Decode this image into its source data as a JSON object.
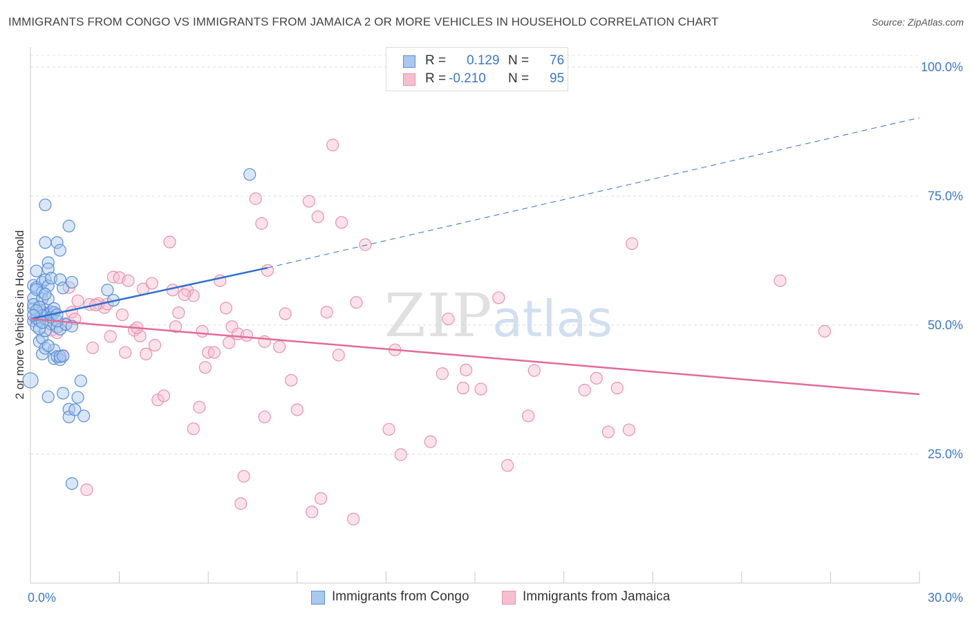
{
  "header": {
    "title": "IMMIGRANTS FROM CONGO VS IMMIGRANTS FROM JAMAICA 2 OR MORE VEHICLES IN HOUSEHOLD CORRELATION CHART",
    "source": "Source: ZipAtlas.com"
  },
  "legend_top": {
    "congo": {
      "r_label": "R =",
      "r_value": "0.129",
      "n_label": "N =",
      "n_value": "76"
    },
    "jamaica": {
      "r_label": "R =",
      "r_value": "-0.210",
      "n_label": "N =",
      "n_value": "95"
    }
  },
  "watermark": {
    "zip": "ZIP",
    "atlas": "atlas"
  },
  "colors": {
    "congo_fill": "#a9c8ee",
    "congo_stroke": "#5a8fd6",
    "congo_line": "#2f6fcc",
    "jamaica_fill": "#f6bfd0",
    "jamaica_stroke": "#e990ad",
    "jamaica_line": "#e26a97",
    "tick_label": "#3b78c8"
  },
  "chart_data": {
    "type": "scatter",
    "title": "IMMIGRANTS FROM CONGO VS IMMIGRANTS FROM JAMAICA 2 OR MORE VEHICLES IN HOUSEHOLD CORRELATION CHART",
    "xlabel": "",
    "ylabel": "2 or more Vehicles in Household",
    "xlim": [
      0,
      30
    ],
    "ylim": [
      0,
      100
    ],
    "x_tick_labels": [
      "0.0%",
      "30.0%"
    ],
    "y_ticks": [
      25,
      50,
      75,
      100
    ],
    "y_tick_labels": [
      "25.0%",
      "50.0%",
      "75.0%",
      "100.0%"
    ],
    "grid": true,
    "legend_position": "bottom",
    "series": [
      {
        "name": "Immigrants from Congo",
        "r": 0.129,
        "n": 76,
        "trend": {
          "x0": 0,
          "y0": 51.2,
          "x1": 8.0,
          "y1": 61.1,
          "dash_to_x": 30,
          "dash_to_y": 90.2
        },
        "points": [
          [
            0.0,
            39.3
          ],
          [
            0.1,
            50.8
          ],
          [
            0.1,
            53.2
          ],
          [
            0.1,
            55.2
          ],
          [
            0.1,
            57.7
          ],
          [
            0.2,
            57.3
          ],
          [
            0.2,
            60.5
          ],
          [
            0.2,
            52.3
          ],
          [
            0.2,
            51.2
          ],
          [
            0.2,
            49.8
          ],
          [
            0.3,
            46.8
          ],
          [
            0.3,
            50.9
          ],
          [
            0.4,
            56.4
          ],
          [
            0.4,
            58.3
          ],
          [
            0.4,
            55.1
          ],
          [
            0.4,
            44.4
          ],
          [
            0.4,
            47.5
          ],
          [
            0.4,
            52.6
          ],
          [
            0.5,
            66.0
          ],
          [
            0.5,
            73.3
          ],
          [
            0.5,
            58.8
          ],
          [
            0.5,
            52.0
          ],
          [
            0.5,
            45.5
          ],
          [
            0.6,
            62.1
          ],
          [
            0.6,
            60.9
          ],
          [
            0.6,
            57.6
          ],
          [
            0.6,
            55.1
          ],
          [
            0.6,
            36.1
          ],
          [
            0.6,
            52.1
          ],
          [
            0.6,
            51.0
          ],
          [
            0.7,
            59.1
          ],
          [
            0.7,
            52.6
          ],
          [
            0.7,
            50.2
          ],
          [
            0.8,
            52.4
          ],
          [
            0.8,
            45.2
          ],
          [
            0.8,
            43.5
          ],
          [
            0.9,
            66.0
          ],
          [
            0.9,
            43.9
          ],
          [
            0.9,
            49.6
          ],
          [
            1.0,
            64.5
          ],
          [
            1.0,
            58.8
          ],
          [
            1.0,
            49.2
          ],
          [
            1.0,
            43.3
          ],
          [
            1.0,
            43.9
          ],
          [
            1.1,
            57.2
          ],
          [
            1.1,
            36.8
          ],
          [
            1.2,
            50.1
          ],
          [
            1.3,
            69.2
          ],
          [
            1.3,
            33.7
          ],
          [
            1.3,
            32.2
          ],
          [
            1.4,
            58.3
          ],
          [
            1.4,
            49.8
          ],
          [
            1.4,
            19.3
          ],
          [
            1.5,
            33.6
          ],
          [
            1.6,
            36.0
          ],
          [
            1.7,
            39.2
          ],
          [
            1.8,
            32.4
          ],
          [
            2.6,
            56.8
          ],
          [
            2.8,
            54.8
          ],
          [
            7.4,
            79.2
          ],
          [
            0.1,
            54.0
          ],
          [
            0.2,
            56.9
          ],
          [
            0.3,
            53.5
          ],
          [
            0.4,
            51.8
          ],
          [
            0.5,
            48.9
          ],
          [
            0.7,
            51.5
          ],
          [
            0.8,
            53.2
          ],
          [
            0.9,
            50.8
          ],
          [
            1.1,
            44.0
          ],
          [
            0.3,
            49.3
          ],
          [
            0.5,
            56.0
          ],
          [
            0.2,
            52.8
          ],
          [
            0.6,
            46.0
          ],
          [
            0.4,
            50.5
          ],
          [
            0.9,
            52.0
          ],
          [
            0.1,
            51.9
          ]
        ]
      },
      {
        "name": "Immigrants from Jamaica",
        "r": -0.21,
        "n": 95,
        "trend": {
          "x0": 0,
          "y0": 51.2,
          "x1": 30,
          "y1": 36.6
        },
        "points": [
          [
            0.4,
            53.5
          ],
          [
            0.5,
            52.3
          ],
          [
            0.7,
            49.0
          ],
          [
            0.8,
            52.5
          ],
          [
            0.9,
            48.5
          ],
          [
            1.1,
            44.1
          ],
          [
            1.2,
            50.3
          ],
          [
            1.3,
            57.3
          ],
          [
            1.4,
            52.5
          ],
          [
            1.6,
            54.7
          ],
          [
            1.9,
            18.1
          ],
          [
            2.0,
            54.0
          ],
          [
            2.1,
            45.6
          ],
          [
            2.3,
            54.2
          ],
          [
            2.5,
            53.4
          ],
          [
            2.6,
            54.1
          ],
          [
            2.7,
            47.8
          ],
          [
            2.8,
            59.3
          ],
          [
            3.0,
            59.2
          ],
          [
            3.1,
            52.0
          ],
          [
            3.2,
            44.7
          ],
          [
            3.3,
            58.6
          ],
          [
            3.5,
            49.0
          ],
          [
            3.7,
            47.9
          ],
          [
            3.8,
            57.0
          ],
          [
            3.9,
            44.4
          ],
          [
            4.1,
            58.1
          ],
          [
            4.2,
            46.1
          ],
          [
            4.3,
            35.5
          ],
          [
            4.5,
            36.3
          ],
          [
            4.7,
            66.1
          ],
          [
            4.8,
            56.8
          ],
          [
            4.9,
            49.7
          ],
          [
            5.0,
            52.4
          ],
          [
            5.3,
            56.7
          ],
          [
            5.5,
            55.7
          ],
          [
            5.5,
            29.9
          ],
          [
            5.7,
            34.1
          ],
          [
            5.8,
            48.8
          ],
          [
            5.9,
            41.8
          ],
          [
            6.0,
            44.7
          ],
          [
            6.2,
            44.7
          ],
          [
            6.4,
            58.6
          ],
          [
            6.6,
            53.3
          ],
          [
            6.7,
            46.6
          ],
          [
            6.8,
            49.7
          ],
          [
            7.0,
            48.3
          ],
          [
            7.1,
            15.4
          ],
          [
            7.2,
            20.7
          ],
          [
            7.3,
            48.0
          ],
          [
            7.6,
            74.5
          ],
          [
            7.8,
            69.7
          ],
          [
            7.9,
            46.8
          ],
          [
            7.9,
            32.2
          ],
          [
            8.0,
            60.6
          ],
          [
            8.4,
            45.8
          ],
          [
            8.6,
            52.2
          ],
          [
            8.8,
            39.3
          ],
          [
            9.0,
            33.6
          ],
          [
            9.4,
            74.0
          ],
          [
            9.5,
            13.8
          ],
          [
            9.7,
            71.0
          ],
          [
            9.8,
            16.4
          ],
          [
            10.0,
            52.5
          ],
          [
            10.2,
            84.9
          ],
          [
            10.4,
            44.2
          ],
          [
            10.5,
            69.9
          ],
          [
            10.9,
            12.4
          ],
          [
            11.0,
            54.4
          ],
          [
            11.3,
            65.6
          ],
          [
            12.1,
            29.8
          ],
          [
            12.3,
            45.2
          ],
          [
            12.5,
            24.9
          ],
          [
            13.5,
            27.4
          ],
          [
            13.9,
            40.6
          ],
          [
            14.1,
            51.2
          ],
          [
            14.6,
            37.8
          ],
          [
            14.7,
            41.3
          ],
          [
            15.2,
            37.6
          ],
          [
            15.8,
            55.3
          ],
          [
            16.1,
            22.8
          ],
          [
            16.8,
            32.4
          ],
          [
            17.0,
            41.2
          ],
          [
            18.7,
            37.4
          ],
          [
            19.1,
            39.7
          ],
          [
            19.5,
            29.3
          ],
          [
            19.8,
            37.8
          ],
          [
            20.2,
            29.7
          ],
          [
            20.3,
            65.8
          ],
          [
            25.3,
            58.6
          ],
          [
            26.8,
            48.8
          ],
          [
            1.5,
            51.2
          ],
          [
            2.2,
            53.9
          ],
          [
            3.6,
            49.5
          ],
          [
            5.2,
            55.9
          ]
        ]
      }
    ]
  },
  "bottom_legend": {
    "congo": "Immigrants from Congo",
    "jamaica": "Immigrants from Jamaica"
  }
}
